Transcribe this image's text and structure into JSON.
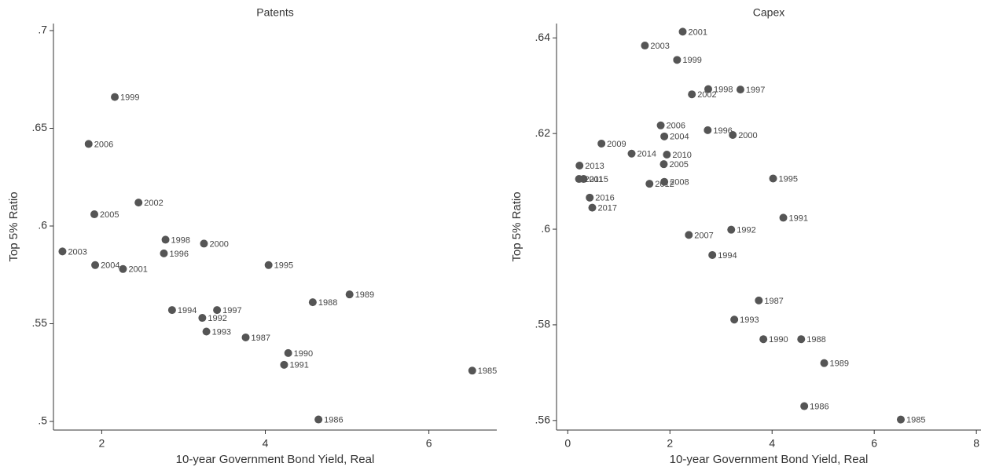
{
  "chart_data": [
    {
      "type": "scatter",
      "title": "Patents",
      "x_label": "10-year Government Bond Yield, Real",
      "y_label": "Top 5% Ratio",
      "xlim": [
        1.41,
        6.83
      ],
      "ylim": [
        0.4956,
        0.7036
      ],
      "xticks": [
        2,
        4,
        6
      ],
      "yticks": [
        {
          "value": 0.5,
          "label": ".5"
        },
        {
          "value": 0.55,
          "label": ".55"
        },
        {
          "value": 0.6,
          "label": ".6"
        },
        {
          "value": 0.65,
          "label": ".65"
        },
        {
          "value": 0.7,
          "label": ".7"
        }
      ],
      "color": "#555555",
      "labels": [
        "1999",
        "2006",
        "2002",
        "2005",
        "1998",
        "1996",
        "2000",
        "2003",
        "2004",
        "2001",
        "1995",
        "1988",
        "1989",
        "1994",
        "1997",
        "1992",
        "1993",
        "1987",
        "1990",
        "1991",
        "1986",
        "1985"
      ],
      "x": [
        2.16,
        1.84,
        2.45,
        1.91,
        2.78,
        2.76,
        3.25,
        1.52,
        1.92,
        2.26,
        4.04,
        4.58,
        5.03,
        2.86,
        3.41,
        3.23,
        3.28,
        3.76,
        4.28,
        4.23,
        4.65,
        6.53
      ],
      "y": [
        0.666,
        0.642,
        0.612,
        0.606,
        0.593,
        0.586,
        0.591,
        0.587,
        0.58,
        0.578,
        0.58,
        0.561,
        0.565,
        0.557,
        0.557,
        0.553,
        0.546,
        0.543,
        0.535,
        0.529,
        0.501,
        0.526
      ]
    },
    {
      "type": "scatter",
      "title": "Capex",
      "x_label": "10-year Government Bond Yield, Real",
      "y_label": "Top 5% Ratio",
      "xlim": [
        -0.22,
        8.09
      ],
      "ylim": [
        0.558,
        0.643
      ],
      "xticks": [
        0,
        2,
        4,
        6,
        8
      ],
      "yticks": [
        {
          "value": 0.56,
          "label": ".56"
        },
        {
          "value": 0.58,
          "label": ".58"
        },
        {
          "value": 0.6,
          "label": ".6"
        },
        {
          "value": 0.62,
          "label": ".62"
        },
        {
          "value": 0.64,
          "label": ".64"
        }
      ],
      "color": "#555555",
      "labels": [
        "2001",
        "2003",
        "1999",
        "1998",
        "1997",
        "2002",
        "2006",
        "1996",
        "2000",
        "2004",
        "2009",
        "2014",
        "2010",
        "2005",
        "2013",
        "2015",
        "2011",
        "2012",
        "2008",
        "1995",
        "2016",
        "2017",
        "1991",
        "2007",
        "1992",
        "1994",
        "1987",
        "1993",
        "1990",
        "1988",
        "1989",
        "1986",
        "1985"
      ],
      "x": [
        2.25,
        1.51,
        2.14,
        2.75,
        3.38,
        2.43,
        1.82,
        2.74,
        3.23,
        1.89,
        0.66,
        1.25,
        1.94,
        1.88,
        0.23,
        0.31,
        0.22,
        1.6,
        1.89,
        4.02,
        0.43,
        0.48,
        4.22,
        2.37,
        3.2,
        2.83,
        3.74,
        3.26,
        3.83,
        4.57,
        5.02,
        4.63,
        6.52
      ],
      "y": [
        0.6413,
        0.6384,
        0.6354,
        0.6293,
        0.6292,
        0.6282,
        0.6217,
        0.6207,
        0.6197,
        0.6194,
        0.6179,
        0.6158,
        0.6156,
        0.6136,
        0.6133,
        0.6105,
        0.6105,
        0.6095,
        0.6099,
        0.6106,
        0.6066,
        0.6045,
        0.6024,
        0.5988,
        0.5999,
        0.5946,
        0.5851,
        0.5811,
        0.577,
        0.577,
        0.572,
        0.563,
        0.5602
      ]
    }
  ]
}
